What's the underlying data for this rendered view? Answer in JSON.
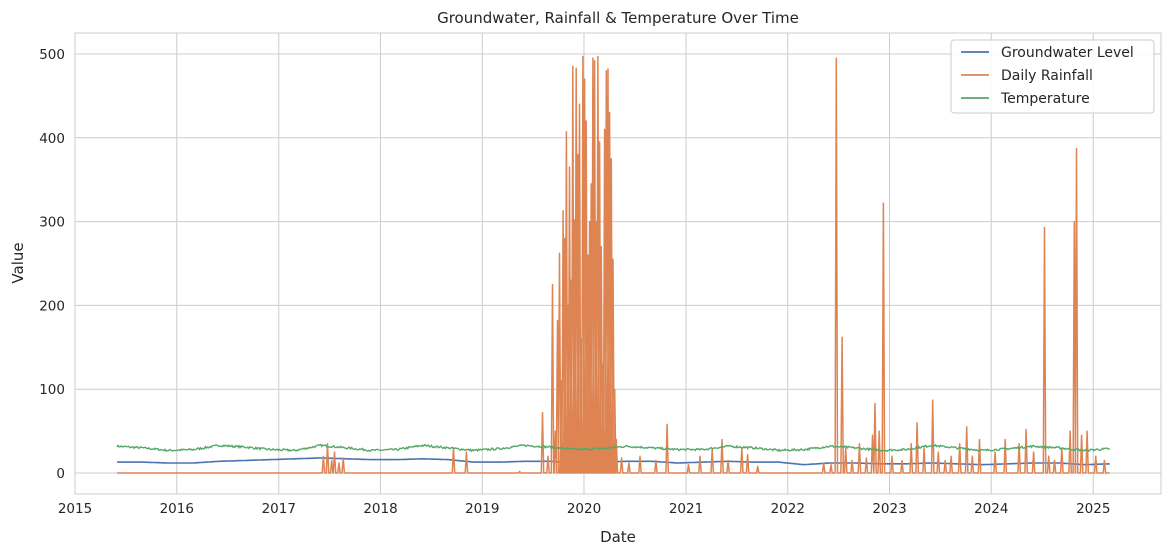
{
  "chart_data": {
    "type": "line",
    "title": "Groundwater, Rainfall & Temperature Over Time",
    "xlabel": "Date",
    "ylabel": "Value",
    "xlim": [
      "2015-01-01",
      "2025-09-01"
    ],
    "ylim": [
      -25,
      525
    ],
    "x_ticks": [
      "2015",
      "2016",
      "2017",
      "2018",
      "2019",
      "2020",
      "2021",
      "2022",
      "2023",
      "2024",
      "2025"
    ],
    "y_ticks": [
      0,
      100,
      200,
      300,
      400,
      500
    ],
    "grid": true,
    "legend_position": "top-right",
    "series": [
      {
        "name": "Groundwater Level",
        "color": "#4c72b0",
        "points": [
          [
            "2015-06-01",
            13
          ],
          [
            "2015-09-01",
            13
          ],
          [
            "2015-12-01",
            12
          ],
          [
            "2016-03-01",
            12
          ],
          [
            "2016-06-01",
            14
          ],
          [
            "2016-09-01",
            15
          ],
          [
            "2016-12-01",
            16
          ],
          [
            "2017-03-01",
            17
          ],
          [
            "2017-06-01",
            18
          ],
          [
            "2017-09-01",
            17
          ],
          [
            "2017-12-01",
            16
          ],
          [
            "2018-03-01",
            16
          ],
          [
            "2018-06-01",
            17
          ],
          [
            "2018-09-01",
            16
          ],
          [
            "2018-12-01",
            13
          ],
          [
            "2019-03-01",
            13
          ],
          [
            "2019-06-01",
            14
          ],
          [
            "2019-09-01",
            14
          ],
          [
            "2019-12-01",
            12
          ],
          [
            "2020-03-01",
            13
          ],
          [
            "2020-06-01",
            14
          ],
          [
            "2020-09-01",
            14
          ],
          [
            "2020-12-01",
            12
          ],
          [
            "2021-03-01",
            13
          ],
          [
            "2021-06-01",
            14
          ],
          [
            "2021-09-01",
            13
          ],
          [
            "2021-12-01",
            13
          ],
          [
            "2022-03-01",
            10
          ],
          [
            "2022-06-01",
            12
          ],
          [
            "2022-09-01",
            12
          ],
          [
            "2022-12-01",
            11
          ],
          [
            "2023-03-01",
            11
          ],
          [
            "2023-06-01",
            12
          ],
          [
            "2023-09-01",
            11
          ],
          [
            "2023-12-01",
            10
          ],
          [
            "2024-03-01",
            11
          ],
          [
            "2024-06-01",
            12
          ],
          [
            "2024-09-01",
            12
          ],
          [
            "2024-12-01",
            10
          ],
          [
            "2025-03-01",
            11
          ]
        ]
      },
      {
        "name": "Daily Rainfall",
        "color": "#dd8452",
        "baseline": 0,
        "events": [
          [
            "2017-06-10",
            20
          ],
          [
            "2017-06-25",
            35
          ],
          [
            "2017-07-10",
            15
          ],
          [
            "2017-07-20",
            25
          ],
          [
            "2017-08-05",
            12
          ],
          [
            "2017-08-20",
            18
          ],
          [
            "2018-09-20",
            30
          ],
          [
            "2018-11-05",
            25
          ],
          [
            "2019-05-15",
            2
          ],
          [
            "2019-08-05",
            72
          ],
          [
            "2019-08-25",
            20
          ],
          [
            "2019-09-10",
            225
          ],
          [
            "2019-09-20",
            50
          ],
          [
            "2019-09-28",
            182
          ],
          [
            "2019-10-05",
            262
          ],
          [
            "2019-10-12",
            110
          ],
          [
            "2019-10-18",
            313
          ],
          [
            "2019-10-24",
            280
          ],
          [
            "2019-10-30",
            407
          ],
          [
            "2019-11-05",
            200
          ],
          [
            "2019-11-10",
            365
          ],
          [
            "2019-11-16",
            230
          ],
          [
            "2019-11-22",
            485
          ],
          [
            "2019-11-28",
            302
          ],
          [
            "2019-12-04",
            483
          ],
          [
            "2019-12-10",
            380
          ],
          [
            "2019-12-16",
            440
          ],
          [
            "2019-12-22",
            160
          ],
          [
            "2019-12-28",
            497
          ],
          [
            "2020-01-03",
            470
          ],
          [
            "2020-01-09",
            420
          ],
          [
            "2020-01-15",
            260
          ],
          [
            "2020-01-21",
            300
          ],
          [
            "2020-01-27",
            345
          ],
          [
            "2020-02-02",
            495
          ],
          [
            "2020-02-08",
            492
          ],
          [
            "2020-02-14",
            300
          ],
          [
            "2020-02-20",
            497
          ],
          [
            "2020-02-26",
            395
          ],
          [
            "2020-03-03",
            270
          ],
          [
            "2020-03-09",
            130
          ],
          [
            "2020-03-15",
            410
          ],
          [
            "2020-03-21",
            480
          ],
          [
            "2020-03-27",
            482
          ],
          [
            "2020-04-02",
            430
          ],
          [
            "2020-04-08",
            375
          ],
          [
            "2020-04-14",
            255
          ],
          [
            "2020-04-20",
            100
          ],
          [
            "2020-04-26",
            40
          ],
          [
            "2020-05-15",
            18
          ],
          [
            "2020-06-10",
            12
          ],
          [
            "2020-07-20",
            20
          ],
          [
            "2020-09-15",
            15
          ],
          [
            "2020-10-25",
            58
          ],
          [
            "2021-01-10",
            10
          ],
          [
            "2021-02-20",
            20
          ],
          [
            "2021-04-05",
            28
          ],
          [
            "2021-05-10",
            40
          ],
          [
            "2021-06-01",
            15
          ],
          [
            "2021-07-20",
            30
          ],
          [
            "2021-08-10",
            22
          ],
          [
            "2021-09-15",
            8
          ],
          [
            "2022-05-10",
            12
          ],
          [
            "2022-06-05",
            10
          ],
          [
            "2022-06-24",
            495
          ],
          [
            "2022-07-15",
            162
          ],
          [
            "2022-07-28",
            30
          ],
          [
            "2022-08-20",
            15
          ],
          [
            "2022-09-15",
            35
          ],
          [
            "2022-10-10",
            18
          ],
          [
            "2022-11-01",
            45
          ],
          [
            "2022-11-10",
            83
          ],
          [
            "2022-11-25",
            50
          ],
          [
            "2022-12-10",
            322
          ],
          [
            "2023-01-10",
            20
          ],
          [
            "2023-02-15",
            15
          ],
          [
            "2023-03-20",
            35
          ],
          [
            "2023-04-10",
            60
          ],
          [
            "2023-05-05",
            30
          ],
          [
            "2023-06-05",
            87
          ],
          [
            "2023-06-25",
            25
          ],
          [
            "2023-07-20",
            15
          ],
          [
            "2023-08-10",
            20
          ],
          [
            "2023-09-10",
            35
          ],
          [
            "2023-10-05",
            55
          ],
          [
            "2023-10-25",
            20
          ],
          [
            "2023-11-20",
            40
          ],
          [
            "2024-01-15",
            25
          ],
          [
            "2024-02-20",
            40
          ],
          [
            "2024-04-10",
            35
          ],
          [
            "2024-05-05",
            52
          ],
          [
            "2024-06-01",
            25
          ],
          [
            "2024-07-10",
            293
          ],
          [
            "2024-07-25",
            20
          ],
          [
            "2024-08-15",
            15
          ],
          [
            "2024-09-10",
            30
          ],
          [
            "2024-10-10",
            50
          ],
          [
            "2024-10-25",
            300
          ],
          [
            "2024-11-02",
            387
          ],
          [
            "2024-11-20",
            45
          ],
          [
            "2024-12-10",
            50
          ],
          [
            "2025-01-10",
            20
          ],
          [
            "2025-02-10",
            15
          ]
        ]
      },
      {
        "name": "Temperature",
        "color": "#55a868",
        "points": [
          [
            "2015-06-01",
            32
          ],
          [
            "2015-09-01",
            30
          ],
          [
            "2015-12-01",
            27
          ],
          [
            "2016-03-01",
            28
          ],
          [
            "2016-06-01",
            33
          ],
          [
            "2016-09-01",
            31
          ],
          [
            "2016-12-01",
            28
          ],
          [
            "2017-03-01",
            27
          ],
          [
            "2017-06-01",
            33
          ],
          [
            "2017-09-01",
            30
          ],
          [
            "2017-12-01",
            27
          ],
          [
            "2018-03-01",
            28
          ],
          [
            "2018-06-01",
            33
          ],
          [
            "2018-09-01",
            30
          ],
          [
            "2018-12-01",
            27
          ],
          [
            "2019-03-01",
            29
          ],
          [
            "2019-06-01",
            33
          ],
          [
            "2019-09-01",
            31
          ],
          [
            "2019-12-01",
            28
          ],
          [
            "2020-03-01",
            29
          ],
          [
            "2020-06-01",
            32
          ],
          [
            "2020-09-01",
            30
          ],
          [
            "2020-12-01",
            28
          ],
          [
            "2021-03-01",
            28
          ],
          [
            "2021-06-01",
            32
          ],
          [
            "2021-09-01",
            30
          ],
          [
            "2021-12-01",
            27
          ],
          [
            "2022-03-01",
            28
          ],
          [
            "2022-06-01",
            32
          ],
          [
            "2022-09-01",
            30
          ],
          [
            "2022-12-01",
            27
          ],
          [
            "2023-03-01",
            28
          ],
          [
            "2023-06-01",
            33
          ],
          [
            "2023-09-01",
            30
          ],
          [
            "2023-12-01",
            27
          ],
          [
            "2024-03-01",
            29
          ],
          [
            "2024-06-01",
            32
          ],
          [
            "2024-09-01",
            30
          ],
          [
            "2024-12-01",
            27
          ],
          [
            "2025-03-01",
            29
          ]
        ]
      }
    ]
  }
}
